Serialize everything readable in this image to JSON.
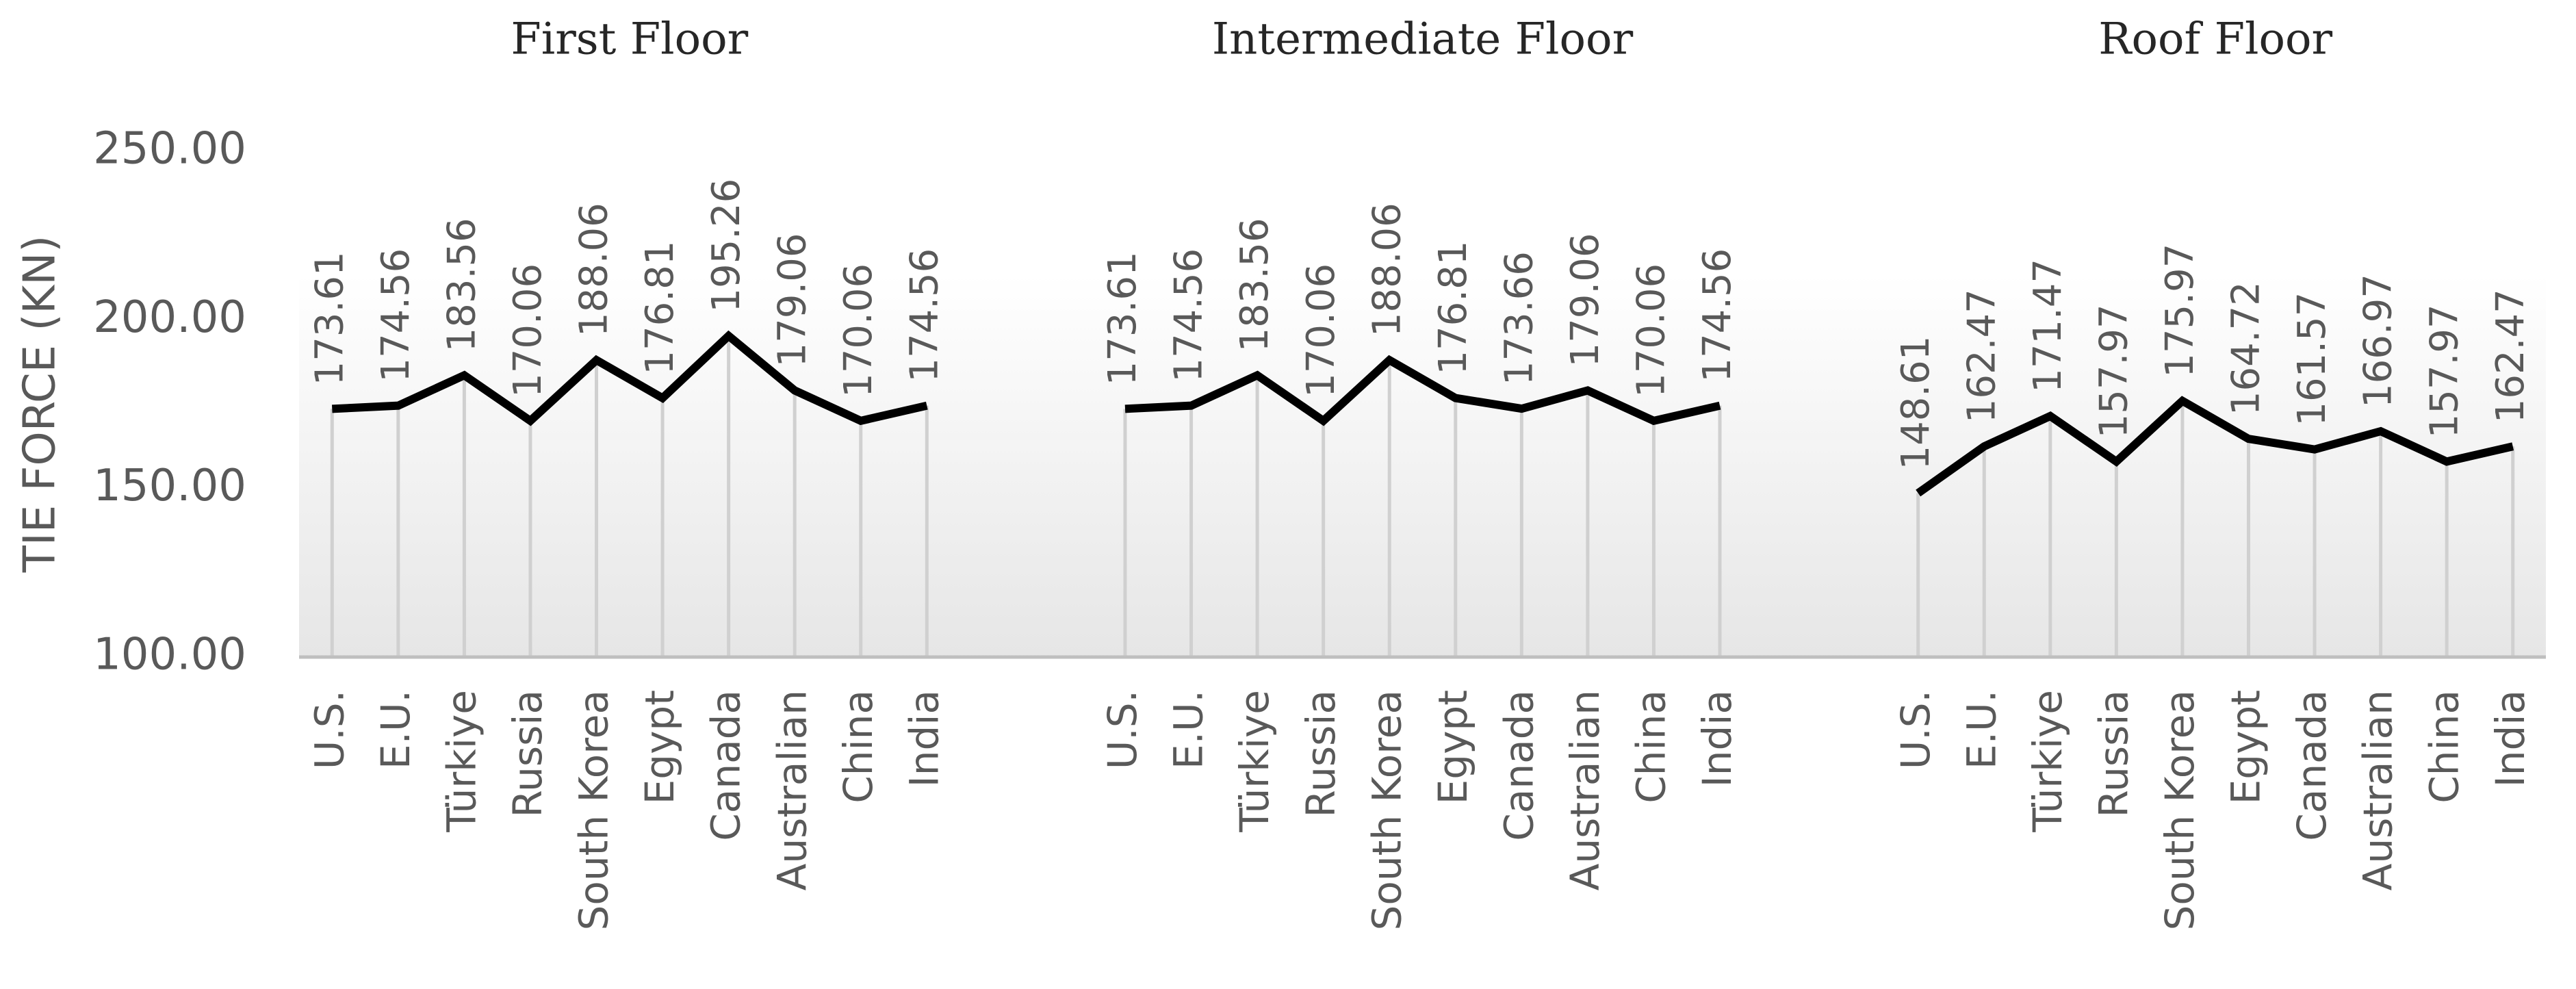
{
  "chart_data": [
    {
      "type": "line",
      "title": "First Floor",
      "ylabel": "TIE FORCE (KN)",
      "categories": [
        "U.S.",
        "E.U.",
        "Türkiye",
        "Russia",
        "South Korea",
        "Egypt",
        "Canada",
        "Australian",
        "China",
        "India"
      ],
      "values": [
        173.61,
        174.56,
        183.56,
        170.06,
        188.06,
        176.81,
        195.26,
        179.06,
        170.06,
        174.56
      ],
      "color": "#000000",
      "drop_lines": true,
      "ylim": [
        100,
        250
      ],
      "yticks": [
        {
          "value": 100,
          "label": "100.00"
        },
        {
          "value": 150,
          "label": "150.00"
        },
        {
          "value": 200,
          "label": "200.00"
        },
        {
          "value": 250,
          "label": "250.00"
        }
      ]
    },
    {
      "type": "line",
      "title": "Intermediate Floor",
      "categories": [
        "U.S.",
        "E.U.",
        "Türkiye",
        "Russia",
        "South Korea",
        "Egypt",
        "Canada",
        "Australian",
        "China",
        "India"
      ],
      "values": [
        173.61,
        174.56,
        183.56,
        170.06,
        188.06,
        176.81,
        173.66,
        179.06,
        170.06,
        174.56
      ],
      "color": "#000000",
      "drop_lines": true,
      "ylim": [
        100,
        250
      ]
    },
    {
      "type": "line",
      "title": "Roof Floor",
      "categories": [
        "U.S.",
        "E.U.",
        "Türkiye",
        "Russia",
        "South Korea",
        "Egypt",
        "Canada",
        "Australian",
        "China",
        "India"
      ],
      "values": [
        148.61,
        162.47,
        171.47,
        157.97,
        175.97,
        164.72,
        161.57,
        166.97,
        157.97,
        162.47
      ],
      "color": "#000000",
      "drop_lines": true,
      "ylim": [
        100,
        250
      ]
    }
  ]
}
